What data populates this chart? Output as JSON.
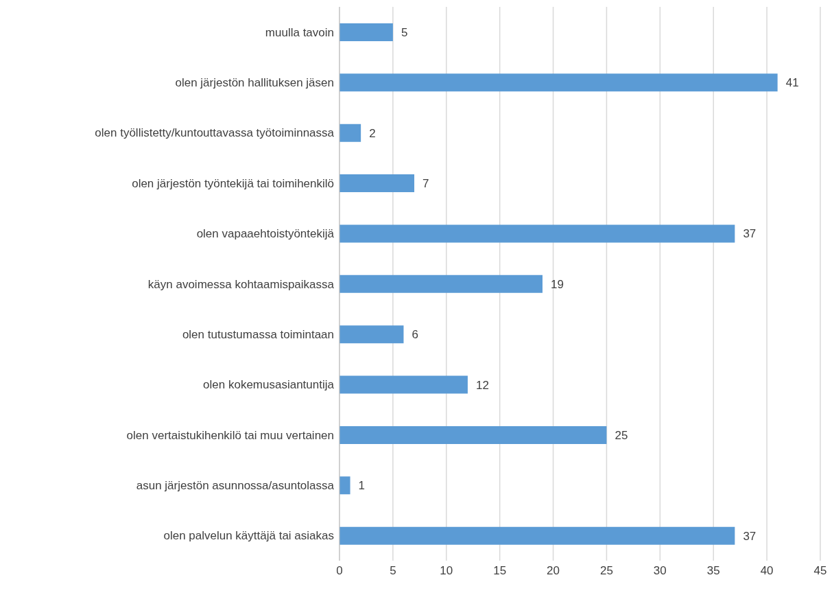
{
  "chart_data": {
    "type": "bar",
    "orientation": "horizontal",
    "categories": [
      "muulla tavoin",
      "olen järjestön hallituksen jäsen",
      "olen työllistetty/kuntouttavassa työtoiminnassa",
      "olen järjestön työntekijä tai toimihenkilö",
      "olen vapaaehtoistyöntekijä",
      "käyn avoimessa kohtaamispaikassa",
      "olen tutustumassa toimintaan",
      "olen kokemusasiantuntija",
      "olen vertaistukihenkilö tai muu vertainen",
      "asun järjestön asunnossa/asuntolassa",
      "olen palvelun käyttäjä tai asiakas"
    ],
    "values": [
      5,
      41,
      2,
      7,
      37,
      19,
      6,
      12,
      25,
      1,
      37
    ],
    "color": "#5b9bd5",
    "xlim": [
      0,
      45
    ],
    "xticks": [
      0,
      5,
      10,
      15,
      20,
      25,
      30,
      35,
      40,
      45
    ],
    "grid": "x",
    "data_labels": true,
    "legend": false
  }
}
